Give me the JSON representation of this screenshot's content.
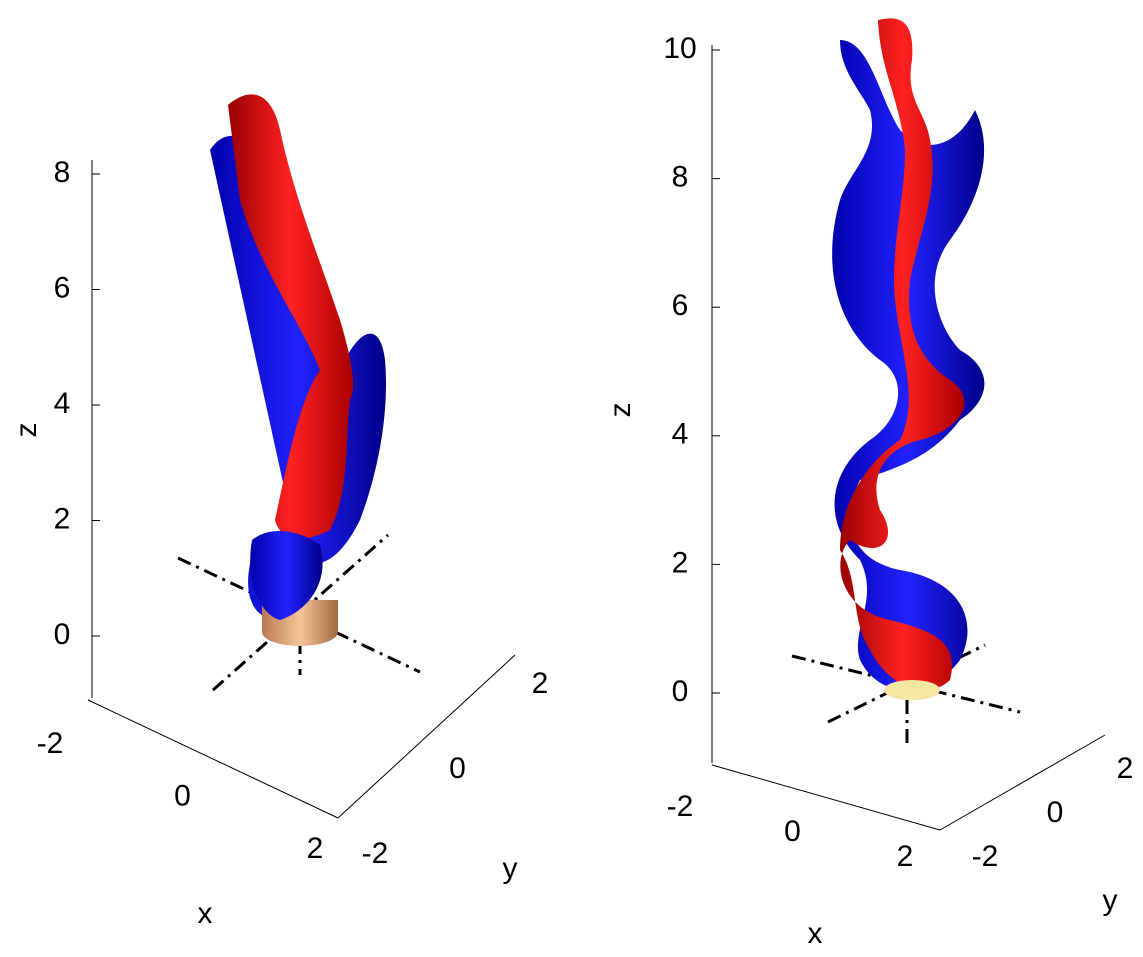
{
  "panels": [
    {
      "x_label": "x",
      "y_label": "y",
      "z_label": "z",
      "xticks": [
        -2,
        0,
        2
      ],
      "yticks": [
        -2,
        0,
        2
      ],
      "zticks": [
        0,
        2,
        4,
        6,
        8
      ]
    },
    {
      "x_label": "x",
      "y_label": "y",
      "z_label": "z",
      "xticks": [
        -2,
        0,
        2
      ],
      "yticks": [
        -2,
        0,
        2
      ],
      "zticks": [
        0,
        2,
        4,
        6,
        8,
        10
      ]
    }
  ]
}
